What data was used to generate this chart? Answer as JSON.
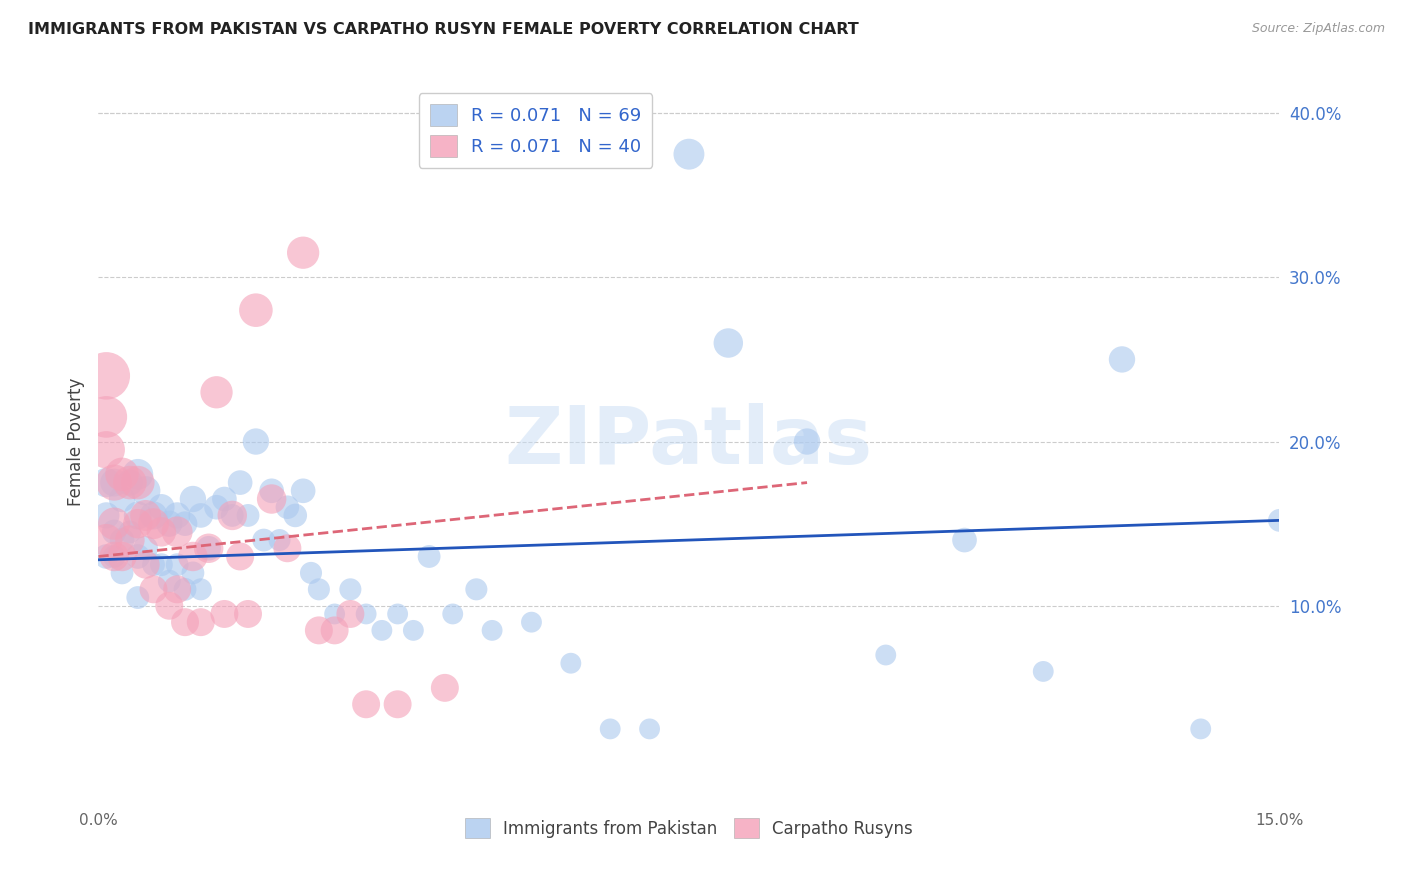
{
  "title": "IMMIGRANTS FROM PAKISTAN VS CARPATHO RUSYN FEMALE POVERTY CORRELATION CHART",
  "source": "Source: ZipAtlas.com",
  "ylabel": "Female Poverty",
  "xlim": [
    0.0,
    0.15
  ],
  "ylim": [
    -0.02,
    0.42
  ],
  "yticks_right": [
    0.1,
    0.2,
    0.3,
    0.4
  ],
  "ytick_labels_right": [
    "10.0%",
    "20.0%",
    "30.0%",
    "40.0%"
  ],
  "pakistan_color": "#aac8ee",
  "rusyn_color": "#f4a0b8",
  "pakistan_line_color": "#2255bb",
  "rusyn_line_color": "#dd6677",
  "pakistan_line": {
    "x0": 0.0,
    "y0": 0.128,
    "x1": 0.15,
    "y1": 0.152
  },
  "rusyn_line": {
    "x0": 0.0,
    "y0": 0.13,
    "x1": 0.09,
    "y1": 0.175
  },
  "pakistan_x": [
    0.001,
    0.001,
    0.001,
    0.002,
    0.002,
    0.002,
    0.003,
    0.003,
    0.003,
    0.004,
    0.004,
    0.005,
    0.005,
    0.005,
    0.005,
    0.006,
    0.006,
    0.007,
    0.007,
    0.008,
    0.008,
    0.009,
    0.009,
    0.01,
    0.01,
    0.011,
    0.011,
    0.012,
    0.012,
    0.013,
    0.013,
    0.014,
    0.015,
    0.016,
    0.017,
    0.018,
    0.019,
    0.02,
    0.021,
    0.022,
    0.023,
    0.024,
    0.025,
    0.026,
    0.027,
    0.028,
    0.03,
    0.032,
    0.034,
    0.036,
    0.038,
    0.04,
    0.042,
    0.045,
    0.048,
    0.05,
    0.055,
    0.06,
    0.065,
    0.07,
    0.075,
    0.08,
    0.09,
    0.1,
    0.11,
    0.12,
    0.13,
    0.14,
    0.15
  ],
  "pakistan_y": [
    0.175,
    0.155,
    0.13,
    0.175,
    0.145,
    0.13,
    0.165,
    0.14,
    0.12,
    0.175,
    0.145,
    0.18,
    0.155,
    0.13,
    0.105,
    0.17,
    0.135,
    0.155,
    0.125,
    0.16,
    0.125,
    0.15,
    0.115,
    0.155,
    0.125,
    0.15,
    0.11,
    0.165,
    0.12,
    0.155,
    0.11,
    0.135,
    0.16,
    0.165,
    0.155,
    0.175,
    0.155,
    0.2,
    0.14,
    0.17,
    0.14,
    0.16,
    0.155,
    0.17,
    0.12,
    0.11,
    0.095,
    0.11,
    0.095,
    0.085,
    0.095,
    0.085,
    0.13,
    0.095,
    0.11,
    0.085,
    0.09,
    0.065,
    0.025,
    0.025,
    0.375,
    0.26,
    0.2,
    0.07,
    0.14,
    0.06,
    0.25,
    0.025,
    0.152
  ],
  "pakistan_sizes": [
    50,
    40,
    35,
    45,
    35,
    30,
    40,
    35,
    30,
    40,
    30,
    55,
    45,
    35,
    30,
    50,
    35,
    45,
    30,
    40,
    30,
    40,
    30,
    40,
    30,
    35,
    30,
    40,
    30,
    35,
    28,
    35,
    35,
    35,
    30,
    35,
    30,
    40,
    30,
    35,
    28,
    32,
    32,
    35,
    28,
    28,
    25,
    28,
    25,
    25,
    25,
    25,
    30,
    25,
    28,
    25,
    25,
    25,
    25,
    25,
    55,
    50,
    40,
    25,
    35,
    25,
    40,
    25,
    30
  ],
  "rusyn_x": [
    0.001,
    0.001,
    0.001,
    0.001,
    0.002,
    0.002,
    0.002,
    0.003,
    0.003,
    0.004,
    0.004,
    0.005,
    0.005,
    0.006,
    0.006,
    0.007,
    0.007,
    0.008,
    0.009,
    0.01,
    0.01,
    0.011,
    0.012,
    0.013,
    0.014,
    0.015,
    0.016,
    0.017,
    0.018,
    0.019,
    0.02,
    0.022,
    0.024,
    0.026,
    0.028,
    0.03,
    0.032,
    0.034,
    0.038,
    0.044
  ],
  "rusyn_y": [
    0.24,
    0.215,
    0.195,
    0.14,
    0.175,
    0.15,
    0.13,
    0.18,
    0.13,
    0.175,
    0.14,
    0.175,
    0.15,
    0.155,
    0.125,
    0.15,
    0.11,
    0.145,
    0.1,
    0.145,
    0.11,
    0.09,
    0.13,
    0.09,
    0.135,
    0.23,
    0.095,
    0.155,
    0.13,
    0.095,
    0.28,
    0.165,
    0.135,
    0.315,
    0.085,
    0.085,
    0.095,
    0.04,
    0.04,
    0.05
  ],
  "rusyn_sizes": [
    130,
    100,
    80,
    60,
    75,
    60,
    50,
    65,
    50,
    65,
    50,
    65,
    50,
    55,
    45,
    55,
    45,
    50,
    45,
    55,
    45,
    45,
    50,
    45,
    50,
    60,
    45,
    50,
    45,
    45,
    65,
    50,
    45,
    60,
    45,
    45,
    45,
    45,
    45,
    45
  ],
  "legend_entries": [
    {
      "label": "R = 0.071   N = 69",
      "color": "#aac8ee"
    },
    {
      "label": "R = 0.071   N = 40",
      "color": "#f4a0b8"
    }
  ],
  "legend_labels_bottom": [
    "Immigrants from Pakistan",
    "Carpatho Rusyns"
  ],
  "watermark_text": "ZIPatlas"
}
